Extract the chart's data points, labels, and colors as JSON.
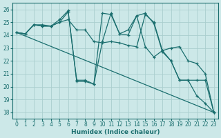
{
  "xlabel": "Humidex (Indice chaleur)",
  "background_color": "#cce8e8",
  "grid_color": "#aacece",
  "line_color": "#1a6e6e",
  "xlim": [
    -0.5,
    23.5
  ],
  "ylim": [
    17.5,
    26.5
  ],
  "xticks": [
    0,
    1,
    2,
    3,
    4,
    5,
    6,
    7,
    8,
    9,
    10,
    11,
    12,
    13,
    14,
    15,
    16,
    17,
    18,
    19,
    20,
    21,
    22,
    23
  ],
  "yticks": [
    18,
    19,
    20,
    21,
    22,
    23,
    24,
    25,
    26
  ],
  "series": [
    {
      "x": [
        0,
        1,
        2,
        3,
        4,
        5,
        6,
        7,
        8,
        9,
        10,
        11,
        12,
        13,
        14,
        15,
        16,
        17,
        18,
        19,
        20,
        21,
        22,
        23
      ],
      "y": [
        24.2,
        24.1,
        24.8,
        24.8,
        24.7,
        25.0,
        25.2,
        24.4,
        24.4,
        23.5,
        23.4,
        23.5,
        23.4,
        23.2,
        23.1,
        25.6,
        25.0,
        22.8,
        22.0,
        20.5,
        20.5,
        20.5,
        20.5,
        18.0
      ],
      "marker": true
    },
    {
      "x": [
        0,
        1,
        2,
        3,
        4,
        5,
        6,
        7,
        8,
        9,
        10,
        11,
        12,
        13,
        14,
        15,
        16,
        17,
        18,
        19,
        20,
        21,
        22,
        23
      ],
      "y": [
        24.2,
        24.1,
        24.8,
        24.7,
        24.7,
        25.2,
        25.9,
        20.4,
        20.4,
        20.2,
        23.5,
        25.7,
        24.1,
        24.4,
        25.5,
        23.1,
        22.3,
        22.8,
        23.0,
        23.1,
        22.0,
        21.8,
        21.0,
        18.0
      ],
      "marker": true
    },
    {
      "x": [
        0,
        1,
        2,
        3,
        4,
        5,
        6,
        7,
        8,
        9,
        10,
        11,
        12,
        13,
        14,
        15,
        16,
        17,
        18,
        19,
        20,
        21,
        22,
        23
      ],
      "y": [
        24.2,
        24.1,
        24.8,
        24.7,
        24.7,
        25.0,
        25.8,
        20.5,
        20.5,
        20.2,
        25.7,
        25.6,
        24.1,
        24.0,
        25.5,
        25.7,
        24.9,
        22.7,
        22.0,
        20.5,
        20.5,
        19.3,
        18.7,
        18.0
      ],
      "marker": true
    },
    {
      "x": [
        0,
        23
      ],
      "y": [
        24.2,
        18.0
      ],
      "marker": false
    }
  ]
}
